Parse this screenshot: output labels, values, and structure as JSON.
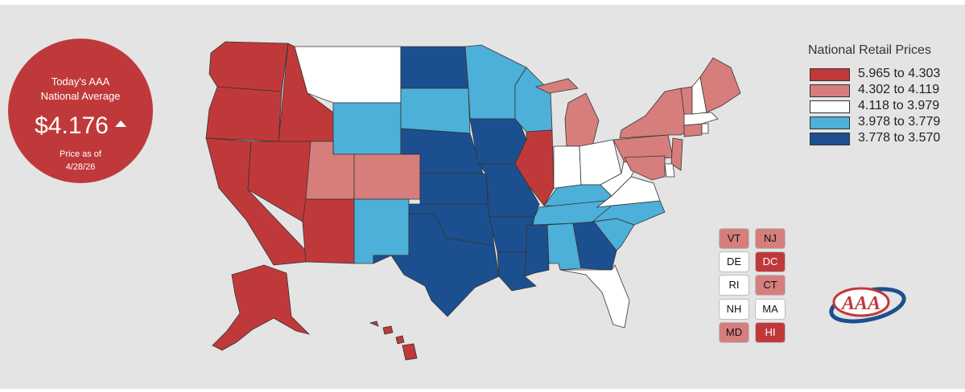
{
  "colors": {
    "tier1": "#c0393a",
    "tier2": "#d67e7c",
    "tier3": "#ffffff",
    "tier4": "#4db0d8",
    "tier5": "#1c4f8f",
    "background": "#e4e4e4"
  },
  "badge": {
    "line1": "Today's AAA",
    "line2": "National Average",
    "price": "$4.176",
    "trend": "up",
    "as_of_label": "Price as of",
    "as_of_date": "4/28/26"
  },
  "legend": {
    "title": "National Retail Prices",
    "items": [
      {
        "label": "5.965 to 4.303",
        "color": "#c0393a"
      },
      {
        "label": "4.302 to 4.119",
        "color": "#d67e7c"
      },
      {
        "label": "4.118 to 3.979",
        "color": "#ffffff"
      },
      {
        "label": "3.978 to 3.779",
        "color": "#4db0d8"
      },
      {
        "label": "3.778 to 3.570",
        "color": "#1c4f8f"
      }
    ]
  },
  "small_states": [
    {
      "abbr": "VT",
      "tier": 2
    },
    {
      "abbr": "NJ",
      "tier": 2
    },
    {
      "abbr": "DE",
      "tier": 3
    },
    {
      "abbr": "DC",
      "tier": 1
    },
    {
      "abbr": "RI",
      "tier": 3
    },
    {
      "abbr": "CT",
      "tier": 2
    },
    {
      "abbr": "NH",
      "tier": 3
    },
    {
      "abbr": "MA",
      "tier": 3
    },
    {
      "abbr": "MD",
      "tier": 2
    },
    {
      "abbr": "HI",
      "tier": 1
    }
  ],
  "state_tiers": {
    "WA": 1,
    "OR": 1,
    "CA": 1,
    "NV": 1,
    "ID": 1,
    "AZ": 1,
    "IL": 1,
    "AK": 1,
    "HI": 1,
    "UT": 2,
    "CO": 2,
    "MI": 2,
    "PA": 2,
    "NY": 2,
    "ME": 2,
    "VT": 2,
    "NJ": 2,
    "CT": 2,
    "MD": 2,
    "MT": 3,
    "IN": 3,
    "OH": 3,
    "WV": 3,
    "VA": 3,
    "FL": 3,
    "NH": 3,
    "MA": 3,
    "RI": 3,
    "DE": 3,
    "WY": 4,
    "SD": 4,
    "MN": 4,
    "WI": 4,
    "NM": 4,
    "KY": 4,
    "TN": 4,
    "NC": 4,
    "SC": 4,
    "AL": 4,
    "ND": 5,
    "NE": 5,
    "IA": 5,
    "KS": 5,
    "MO": 5,
    "OK": 5,
    "TX": 5,
    "AR": 5,
    "LA": 5,
    "MS": 5,
    "GA": 5
  },
  "logo_text": "AAA"
}
